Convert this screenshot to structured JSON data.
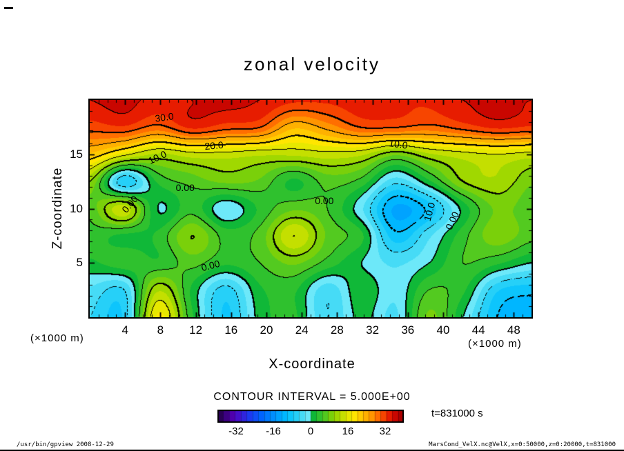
{
  "page": {
    "footer_left": "/usr/bin/gpview  2008-12-29",
    "footer_right": "MarsCond_VelX.nc@VelX,x=0:50000,z=0:20000,t=831000"
  },
  "chart_data": {
    "type": "heatmap",
    "subtype": "filled-contour",
    "title": "zonal velocity",
    "xlabel": "X-coordinate",
    "ylabel": "Z-coordinate",
    "x_unit_label": "(×1000 m)",
    "y_unit_label": "(×1000 m)",
    "xlim": [
      0,
      50
    ],
    "ylim": [
      0,
      20
    ],
    "x_ticks": [
      4,
      8,
      12,
      16,
      20,
      24,
      28,
      32,
      36,
      40,
      44,
      48
    ],
    "y_ticks": [
      5,
      10,
      15
    ],
    "x_minor_step": 1,
    "y_minor_step": 1,
    "contour_interval": 5,
    "contour_interval_label": "CONTOUR INTERVAL = 5.000E+00",
    "time_label": "t=831000 s",
    "colorbar": {
      "min": -40,
      "max": 40,
      "cells": 32,
      "tick_values": [
        -32,
        -16,
        0,
        16,
        32
      ]
    },
    "colormap": [
      [
        -40,
        "#200040"
      ],
      [
        -33,
        "#5500bb"
      ],
      [
        -27,
        "#2233ee"
      ],
      [
        -21,
        "#0066ff"
      ],
      [
        -15,
        "#0099ff"
      ],
      [
        -10,
        "#00c0ff"
      ],
      [
        -5,
        "#33d5f5"
      ],
      [
        -0.01,
        "#80eefa"
      ],
      [
        0,
        "#00b33c"
      ],
      [
        5,
        "#3fc62a"
      ],
      [
        10,
        "#8ed400"
      ],
      [
        14,
        "#c8e000"
      ],
      [
        18,
        "#ffee00"
      ],
      [
        22,
        "#ffc300"
      ],
      [
        26,
        "#ff9900"
      ],
      [
        30,
        "#ff5a00"
      ],
      [
        34,
        "#e51800"
      ],
      [
        37,
        "#c00000"
      ],
      [
        40,
        "#a00000"
      ]
    ],
    "contour_labels": [
      {
        "text": "30.0",
        "x": 0.169,
        "y": 0.079,
        "rot": -8
      },
      {
        "text": "20.0",
        "x": 0.281,
        "y": 0.21,
        "rot": -5
      },
      {
        "text": "10.0",
        "x": 0.153,
        "y": 0.263,
        "rot": -25
      },
      {
        "text": "10.0",
        "x": 0.698,
        "y": 0.203,
        "rot": 8
      },
      {
        "text": "0.00",
        "x": 0.091,
        "y": 0.479,
        "rot": -50
      },
      {
        "text": "0.00",
        "x": 0.216,
        "y": 0.403,
        "rot": 0
      },
      {
        "text": "0.00",
        "x": 0.531,
        "y": 0.463,
        "rot": 0
      },
      {
        "text": "10.0",
        "x": 0.769,
        "y": 0.514,
        "rot": -75
      },
      {
        "text": "0.00",
        "x": 0.82,
        "y": 0.556,
        "rot": -65
      },
      {
        "text": "0.00",
        "x": 0.273,
        "y": 0.762,
        "rot": -15
      }
    ],
    "grid": {
      "x": [
        0,
        3.85,
        7.69,
        11.54,
        15.38,
        19.23,
        23.08,
        26.92,
        30.77,
        34.62,
        38.46,
        42.31,
        46.15,
        50
      ],
      "z": [
        20,
        17.5,
        15,
        12.5,
        10,
        7.5,
        5,
        2.5,
        0
      ],
      "values": [
        [
          35,
          36,
          34,
          35,
          36,
          35,
          33,
          33,
          34,
          33,
          33,
          35,
          36,
          35
        ],
        [
          31,
          32,
          29,
          33,
          31,
          30,
          23,
          26,
          30,
          30,
          29,
          31,
          33,
          32
        ],
        [
          22,
          16,
          12,
          14,
          14,
          13,
          13,
          14,
          13,
          8,
          12,
          14,
          15,
          14
        ],
        [
          10,
          -7,
          3,
          6,
          8,
          7,
          2,
          6,
          4,
          -4,
          2,
          10,
          12,
          8
        ],
        [
          6,
          14,
          0,
          4,
          -2,
          3,
          7,
          5,
          -2,
          -13,
          -9,
          1,
          8,
          6
        ],
        [
          4,
          2,
          3,
          10,
          4,
          6,
          15,
          7,
          3,
          -9,
          -3,
          4,
          9,
          6
        ],
        [
          2,
          4,
          3,
          6,
          3,
          5,
          8,
          4,
          0,
          -3,
          0,
          5,
          3,
          0
        ],
        [
          -3,
          -5,
          12,
          2,
          -6,
          2,
          3,
          -4,
          2,
          -2,
          5,
          3,
          -7,
          -9
        ],
        [
          -5,
          -7,
          18,
          3,
          -8,
          1,
          3,
          -5,
          1,
          -3,
          8,
          0,
          -10,
          -12
        ]
      ]
    }
  }
}
